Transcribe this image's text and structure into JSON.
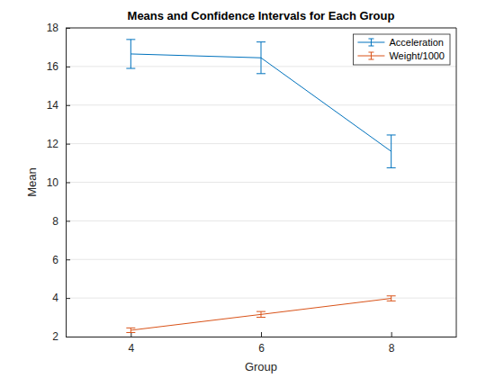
{
  "chart_data": {
    "type": "line",
    "title": "Means and Confidence Intervals for Each Group",
    "x_label": "Group",
    "y_label": "Mean",
    "x": [
      4,
      6,
      8
    ],
    "series": [
      {
        "name": "Acceleration",
        "color": "#0072bd",
        "values": [
          16.65,
          16.45,
          11.6
        ],
        "errors": [
          0.75,
          0.82,
          0.85
        ]
      },
      {
        "name": "Weight/1000",
        "color": "#d95319",
        "values": [
          2.33,
          3.15,
          3.98
        ],
        "errors": [
          0.12,
          0.15,
          0.13
        ]
      }
    ],
    "xlim": [
      3,
      9
    ],
    "xticks": [
      4,
      6,
      8
    ],
    "ylim": [
      2,
      18
    ],
    "yticks": [
      2,
      4,
      6,
      8,
      10,
      12,
      14,
      16,
      18
    ],
    "grid": true,
    "legend": "northeast"
  }
}
